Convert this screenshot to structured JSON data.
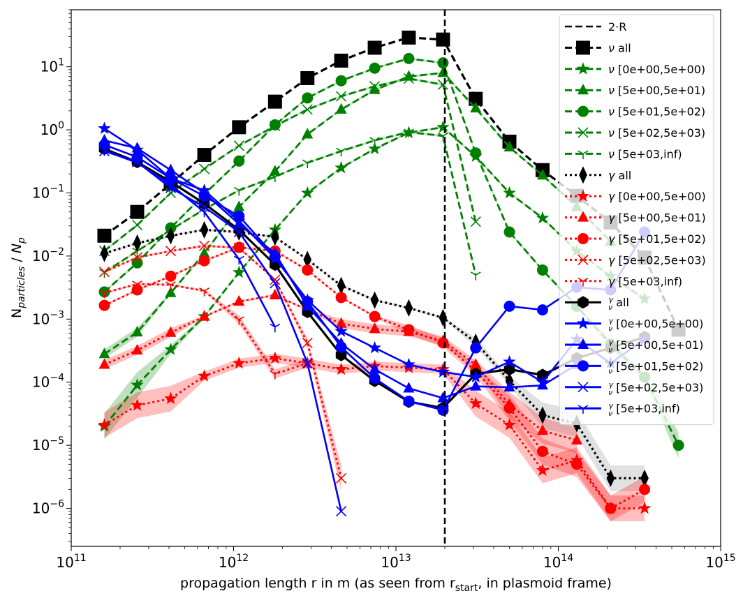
{
  "chart_data": {
    "type": "line",
    "xscale": "log",
    "yscale": "log",
    "xlim": [
      100000000000.0,
      1000000000000000.0
    ],
    "ylim": [
      2.5e-07,
      80
    ],
    "xlabel": "propagation length r in m (as seen from r_start, in plasmoid frame)",
    "ylabel": "N_particles / N_p",
    "x_ticks": [
      {
        "value": 100000000000.0,
        "base": "10",
        "exp": "11"
      },
      {
        "value": 1000000000000.0,
        "base": "10",
        "exp": "12"
      },
      {
        "value": 10000000000000.0,
        "base": "10",
        "exp": "13"
      },
      {
        "value": 100000000000000.0,
        "base": "10",
        "exp": "14"
      },
      {
        "value": 1000000000000000.0,
        "base": "10",
        "exp": "15"
      }
    ],
    "y_ticks": [
      {
        "value": 1e-06,
        "base": "10",
        "exp": "−6"
      },
      {
        "value": 1e-05,
        "base": "10",
        "exp": "−5"
      },
      {
        "value": 0.0001,
        "base": "10",
        "exp": "−4"
      },
      {
        "value": 0.001,
        "base": "10",
        "exp": "−3"
      },
      {
        "value": 0.01,
        "base": "10",
        "exp": "−2"
      },
      {
        "value": 0.1,
        "base": "10",
        "exp": "−1"
      },
      {
        "value": 1,
        "base": "10",
        "exp": "0"
      },
      {
        "value": 10,
        "base": "10",
        "exp": "1"
      }
    ],
    "vline": {
      "x": 20000000000000.0,
      "label": "2·R"
    },
    "legend_position": "upper-right",
    "colors": {
      "nu": "#008000",
      "gamma": "#ff0000",
      "ratio": "#0000ff",
      "all": "#000000"
    },
    "series": [
      {
        "name": "ν all",
        "color": "#000000",
        "dash": "dashed",
        "marker": "square",
        "x": [
          160000000000.0,
          255000000000.0,
          410000000000.0,
          660000000000.0,
          1080000000000.0,
          1800000000000.0,
          2850000000000.0,
          4600000000000.0,
          7400000000000.0,
          12000000000000.0,
          19500000000000.0,
          31000000000000.0,
          50000000000000.0,
          80000000000000.0,
          130000000000000.0,
          210000000000000.0,
          340000000000000.0,
          550000000000000.0
        ],
        "y": [
          0.021,
          0.05,
          0.14,
          0.4,
          1.1,
          2.8,
          6.6,
          12.5,
          20,
          29,
          27,
          3.1,
          0.65,
          0.23,
          0.09,
          0.034,
          0.0095,
          0.00068
        ]
      },
      {
        "name": "ν [0e+00,5e+00)",
        "color": "#008000",
        "dash": "dashed",
        "marker": "star",
        "x": [
          160000000000.0,
          255000000000.0,
          410000000000.0,
          660000000000.0,
          1080000000000.0,
          1800000000000.0,
          2850000000000.0,
          4600000000000.0,
          7400000000000.0,
          12000000000000.0,
          19500000000000.0,
          31000000000000.0,
          50000000000000.0,
          80000000000000.0,
          130000000000000.0,
          210000000000000.0,
          340000000000000.0
        ],
        "y": [
          2e-05,
          9e-05,
          0.00033,
          0.0011,
          0.0055,
          0.026,
          0.1,
          0.25,
          0.5,
          0.9,
          1.1,
          0.38,
          0.1,
          0.04,
          0.012,
          0.0048,
          0.0021
        ]
      },
      {
        "name": "ν [5e+00,5e+01)",
        "color": "#008000",
        "dash": "dashed",
        "marker": "triangle",
        "x": [
          160000000000.0,
          255000000000.0,
          410000000000.0,
          660000000000.0,
          1080000000000.0,
          1800000000000.0,
          2850000000000.0,
          4600000000000.0,
          7400000000000.0,
          12000000000000.0,
          19500000000000.0,
          31000000000000.0,
          50000000000000.0,
          80000000000000.0,
          130000000000000.0,
          210000000000000.0
        ],
        "y": [
          0.00028,
          0.00062,
          0.0026,
          0.011,
          0.06,
          0.22,
          0.85,
          2.1,
          4.3,
          7,
          8,
          2.2,
          0.53,
          0.19,
          0.06,
          0.017
        ]
      },
      {
        "name": "ν [5e+01,5e+02)",
        "color": "#008000",
        "dash": "dashed",
        "marker": "circle",
        "x": [
          160000000000.0,
          255000000000.0,
          410000000000.0,
          660000000000.0,
          1080000000000.0,
          1800000000000.0,
          2850000000000.0,
          4600000000000.0,
          7400000000000.0,
          12000000000000.0,
          19500000000000.0,
          31000000000000.0,
          50000000000000.0,
          80000000000000.0,
          130000000000000.0,
          210000000000000.0,
          340000000000000.0,
          550000000000000.0
        ],
        "y": [
          0.0027,
          0.0078,
          0.028,
          0.095,
          0.32,
          1.2,
          3.2,
          6,
          9.5,
          13.5,
          11.5,
          0.43,
          0.024,
          0.006,
          0.0016,
          0.0004,
          0.00012,
          1e-05
        ]
      },
      {
        "name": "ν [5e+02,5e+03)",
        "color": "#008000",
        "dash": "dashed",
        "marker": "x",
        "x": [
          160000000000.0,
          255000000000.0,
          410000000000.0,
          660000000000.0,
          1080000000000.0,
          1800000000000.0,
          2850000000000.0,
          4600000000000.0,
          7400000000000.0,
          12000000000000.0,
          19500000000000.0,
          31000000000000.0
        ],
        "y": [
          0.012,
          0.031,
          0.1,
          0.24,
          0.56,
          1.15,
          2.1,
          3.4,
          4.9,
          6.5,
          5.2,
          0.035
        ]
      },
      {
        "name": "ν [5e+03,inf)",
        "color": "#008000",
        "dash": "dashed",
        "marker": "tri_down",
        "x": [
          160000000000.0,
          255000000000.0,
          410000000000.0,
          660000000000.0,
          1080000000000.0,
          1800000000000.0,
          2850000000000.0,
          4600000000000.0,
          7400000000000.0,
          12000000000000.0,
          19500000000000.0,
          31000000000000.0
        ],
        "y": [
          0.0055,
          0.012,
          0.026,
          0.055,
          0.11,
          0.18,
          0.3,
          0.46,
          0.68,
          0.92,
          0.8,
          0.005
        ]
      },
      {
        "name": "γ all",
        "color": "#000000",
        "dash": "dotted",
        "marker": "thin_diamond",
        "x": [
          160000000000.0,
          255000000000.0,
          410000000000.0,
          660000000000.0,
          1080000000000.0,
          1800000000000.0,
          2850000000000.0,
          4600000000000.0,
          7400000000000.0,
          12000000000000.0,
          19500000000000.0,
          31000000000000.0,
          50000000000000.0,
          80000000000000.0,
          130000000000000.0,
          210000000000000.0,
          340000000000000.0
        ],
        "y": [
          0.011,
          0.016,
          0.021,
          0.026,
          0.024,
          0.02,
          0.0088,
          0.0034,
          0.002,
          0.0015,
          0.00105,
          0.00043,
          0.000105,
          3e-05,
          2.2e-05,
          3e-06,
          3e-06
        ]
      },
      {
        "name": "γ [0e+00,5e+00)",
        "color": "#ff0000",
        "dash": "dotted",
        "marker": "star",
        "x": [
          160000000000.0,
          255000000000.0,
          410000000000.0,
          660000000000.0,
          1080000000000.0,
          1800000000000.0,
          2850000000000.0,
          4600000000000.0,
          7400000000000.0,
          12000000000000.0,
          19500000000000.0,
          31000000000000.0,
          50000000000000.0,
          80000000000000.0,
          130000000000000.0,
          210000000000000.0,
          340000000000000.0
        ],
        "y": [
          2.1e-05,
          4.3e-05,
          5.5e-05,
          0.000125,
          0.0002,
          0.00024,
          0.0002,
          0.00016,
          0.00018,
          0.00017,
          0.00016,
          4.6e-05,
          2.1e-05,
          4e-06,
          5.8e-06,
          1e-06,
          1e-06
        ]
      },
      {
        "name": "γ [5e+00,5e+01)",
        "color": "#ff0000",
        "dash": "dotted",
        "marker": "triangle",
        "x": [
          160000000000.0,
          255000000000.0,
          410000000000.0,
          660000000000.0,
          1080000000000.0,
          1800000000000.0,
          2850000000000.0,
          4600000000000.0,
          7400000000000.0,
          12000000000000.0,
          19500000000000.0,
          31000000000000.0,
          50000000000000.0,
          80000000000000.0,
          130000000000000.0
        ],
        "y": [
          0.00019,
          0.00032,
          0.00061,
          0.0011,
          0.0019,
          0.0024,
          0.0014,
          0.00085,
          0.0007,
          0.00063,
          0.00045,
          0.00019,
          4.4e-05,
          1.7e-05,
          1.2e-05
        ]
      },
      {
        "name": "γ [5e+01,5e+02)",
        "color": "#ff0000",
        "dash": "dotted",
        "marker": "circle",
        "x": [
          160000000000.0,
          255000000000.0,
          410000000000.0,
          660000000000.0,
          1080000000000.0,
          1800000000000.0,
          2850000000000.0,
          4600000000000.0,
          7400000000000.0,
          12000000000000.0,
          19500000000000.0,
          31000000000000.0,
          50000000000000.0,
          80000000000000.0,
          130000000000000.0,
          210000000000000.0,
          340000000000000.0
        ],
        "y": [
          0.00165,
          0.0029,
          0.0048,
          0.0084,
          0.0137,
          0.012,
          0.006,
          0.0022,
          0.0011,
          0.00068,
          0.00042,
          0.00015,
          3.9e-05,
          8e-06,
          5e-06,
          1e-06,
          2e-06
        ]
      },
      {
        "name": "γ [5e+02,5e+03)",
        "color": "#ff0000",
        "dash": "dotted",
        "marker": "x",
        "x": [
          160000000000.0,
          255000000000.0,
          410000000000.0,
          660000000000.0,
          1080000000000.0,
          1800000000000.0,
          2850000000000.0,
          4600000000000.0
        ],
        "y": [
          0.0056,
          0.0095,
          0.012,
          0.0145,
          0.0135,
          0.0042,
          0.00042,
          3e-06
        ]
      },
      {
        "name": "γ [5e+03,inf)",
        "color": "#ff0000",
        "dash": "dotted",
        "marker": "tri_down",
        "x": [
          160000000000.0,
          255000000000.0,
          410000000000.0,
          660000000000.0,
          1080000000000.0,
          1800000000000.0,
          2850000000000.0
        ],
        "y": [
          0.0026,
          0.0036,
          0.0035,
          0.0028,
          0.00098,
          0.000135,
          0.0002
        ]
      },
      {
        "name": "γ/ν all",
        "color": "#000000",
        "dash": "solid",
        "marker": "hexagon",
        "x": [
          160000000000.0,
          255000000000.0,
          410000000000.0,
          660000000000.0,
          1080000000000.0,
          1800000000000.0,
          2850000000000.0,
          4600000000000.0,
          7400000000000.0,
          12000000000000.0,
          19500000000000.0,
          31000000000000.0,
          50000000000000.0,
          80000000000000.0,
          130000000000000.0,
          210000000000000.0,
          340000000000000.0
        ],
        "y": [
          0.5,
          0.31,
          0.15,
          0.068,
          0.026,
          0.0073,
          0.0013,
          0.00027,
          0.000105,
          4.9e-05,
          3.9e-05,
          0.000135,
          0.00016,
          0.00013,
          0.00024,
          0.00035,
          0.00052
        ]
      },
      {
        "name": "γ/ν [0e+00,5e+00)",
        "color": "#0000ff",
        "dash": "solid",
        "marker": "star",
        "x": [
          160000000000.0,
          255000000000.0,
          410000000000.0,
          660000000000.0,
          1080000000000.0,
          1800000000000.0,
          2850000000000.0,
          4600000000000.0,
          7400000000000.0,
          12000000000000.0,
          19500000000000.0,
          31000000000000.0,
          50000000000000.0,
          80000000000000.0,
          130000000000000.0,
          210000000000000.0,
          340000000000000.0
        ],
        "y": [
          1.05,
          0.48,
          0.17,
          0.11,
          0.036,
          0.0092,
          0.002,
          0.00064,
          0.00035,
          0.00019,
          0.000145,
          0.000121,
          0.00021,
          0.0001,
          0.00048,
          0.0002,
          0.00048
        ]
      },
      {
        "name": "γ/ν [5e+00,5e+01)",
        "color": "#0000ff",
        "dash": "solid",
        "marker": "triangle",
        "x": [
          160000000000.0,
          255000000000.0,
          410000000000.0,
          660000000000.0,
          1080000000000.0,
          1800000000000.0,
          2850000000000.0,
          4600000000000.0,
          7400000000000.0,
          12000000000000.0,
          19500000000000.0,
          31000000000000.0,
          50000000000000.0,
          80000000000000.0,
          130000000000000.0
        ],
        "y": [
          0.68,
          0.51,
          0.23,
          0.1,
          0.032,
          0.011,
          0.0016,
          0.00041,
          0.00016,
          8e-05,
          5.6e-05,
          8.6e-05,
          8.3e-05,
          8.9e-05,
          0.00019
        ]
      },
      {
        "name": "γ/ν [5e+01,5e+02)",
        "color": "#0000ff",
        "dash": "solid",
        "marker": "circle",
        "x": [
          160000000000.0,
          255000000000.0,
          410000000000.0,
          660000000000.0,
          1080000000000.0,
          1800000000000.0,
          2850000000000.0,
          4600000000000.0,
          7400000000000.0,
          12000000000000.0,
          19500000000000.0,
          31000000000000.0,
          50000000000000.0,
          80000000000000.0,
          130000000000000.0,
          210000000000000.0,
          340000000000000.0
        ],
        "y": [
          0.58,
          0.37,
          0.17,
          0.089,
          0.043,
          0.0098,
          0.0019,
          0.00036,
          0.000115,
          5e-05,
          3.6e-05,
          0.00035,
          0.0016,
          0.0014,
          0.0032,
          0.0029,
          0.024
        ]
      },
      {
        "name": "γ/ν [5e+02,5e+03)",
        "color": "#0000ff",
        "dash": "solid",
        "marker": "x",
        "x": [
          160000000000.0,
          255000000000.0,
          410000000000.0,
          660000000000.0,
          1080000000000.0,
          1800000000000.0,
          2850000000000.0,
          4600000000000.0
        ],
        "y": [
          0.46,
          0.31,
          0.12,
          0.06,
          0.024,
          0.0037,
          0.0002,
          9e-07
        ]
      },
      {
        "name": "γ/ν [5e+03,inf)",
        "color": "#0000ff",
        "dash": "solid",
        "marker": "tri_down",
        "x": [
          160000000000.0,
          255000000000.0,
          410000000000.0,
          660000000000.0,
          1080000000000.0,
          1800000000000.0
        ],
        "y": [
          0.47,
          0.3,
          0.135,
          0.05,
          0.0089,
          0.00075
        ]
      }
    ],
    "legend": [
      {
        "label": "2·R",
        "color": "#000000",
        "dash": "dashed",
        "marker": "none"
      },
      {
        "label": "ν all",
        "color": "#000000",
        "dash": "dashed",
        "marker": "square"
      },
      {
        "label": "ν [0e+00,5e+00)",
        "color": "#008000",
        "dash": "dashed",
        "marker": "star"
      },
      {
        "label": "ν [5e+00,5e+01)",
        "color": "#008000",
        "dash": "dashed",
        "marker": "triangle"
      },
      {
        "label": "ν [5e+01,5e+02)",
        "color": "#008000",
        "dash": "dashed",
        "marker": "circle"
      },
      {
        "label": "ν [5e+02,5e+03)",
        "color": "#008000",
        "dash": "dashed",
        "marker": "x"
      },
      {
        "label": "ν [5e+03,inf)",
        "color": "#008000",
        "dash": "dashed",
        "marker": "tri_down"
      },
      {
        "label": "γ all",
        "color": "#000000",
        "dash": "dotted",
        "marker": "thin_diamond"
      },
      {
        "label": "γ [0e+00,5e+00)",
        "color": "#ff0000",
        "dash": "dotted",
        "marker": "star"
      },
      {
        "label": "γ [5e+00,5e+01)",
        "color": "#ff0000",
        "dash": "dotted",
        "marker": "triangle"
      },
      {
        "label": "γ [5e+01,5e+02)",
        "color": "#ff0000",
        "dash": "dotted",
        "marker": "circle"
      },
      {
        "label": "γ [5e+02,5e+03)",
        "color": "#ff0000",
        "dash": "dotted",
        "marker": "x"
      },
      {
        "label": "γ [5e+03,inf)",
        "color": "#ff0000",
        "dash": "dotted",
        "marker": "tri_down"
      },
      {
        "label": "γ/ν all",
        "color": "#000000",
        "dash": "solid",
        "marker": "hexagon"
      },
      {
        "label": "γ/ν [0e+00,5e+00)",
        "color": "#0000ff",
        "dash": "solid",
        "marker": "star"
      },
      {
        "label": "γ/ν [5e+00,5e+01)",
        "color": "#0000ff",
        "dash": "solid",
        "marker": "triangle"
      },
      {
        "label": "γ/ν [5e+01,5e+02)",
        "color": "#0000ff",
        "dash": "solid",
        "marker": "circle"
      },
      {
        "label": "γ/ν [5e+02,5e+03)",
        "color": "#0000ff",
        "dash": "solid",
        "marker": "x"
      },
      {
        "label": "γ/ν [5e+03,inf)",
        "color": "#0000ff",
        "dash": "solid",
        "marker": "tri_down"
      }
    ]
  }
}
